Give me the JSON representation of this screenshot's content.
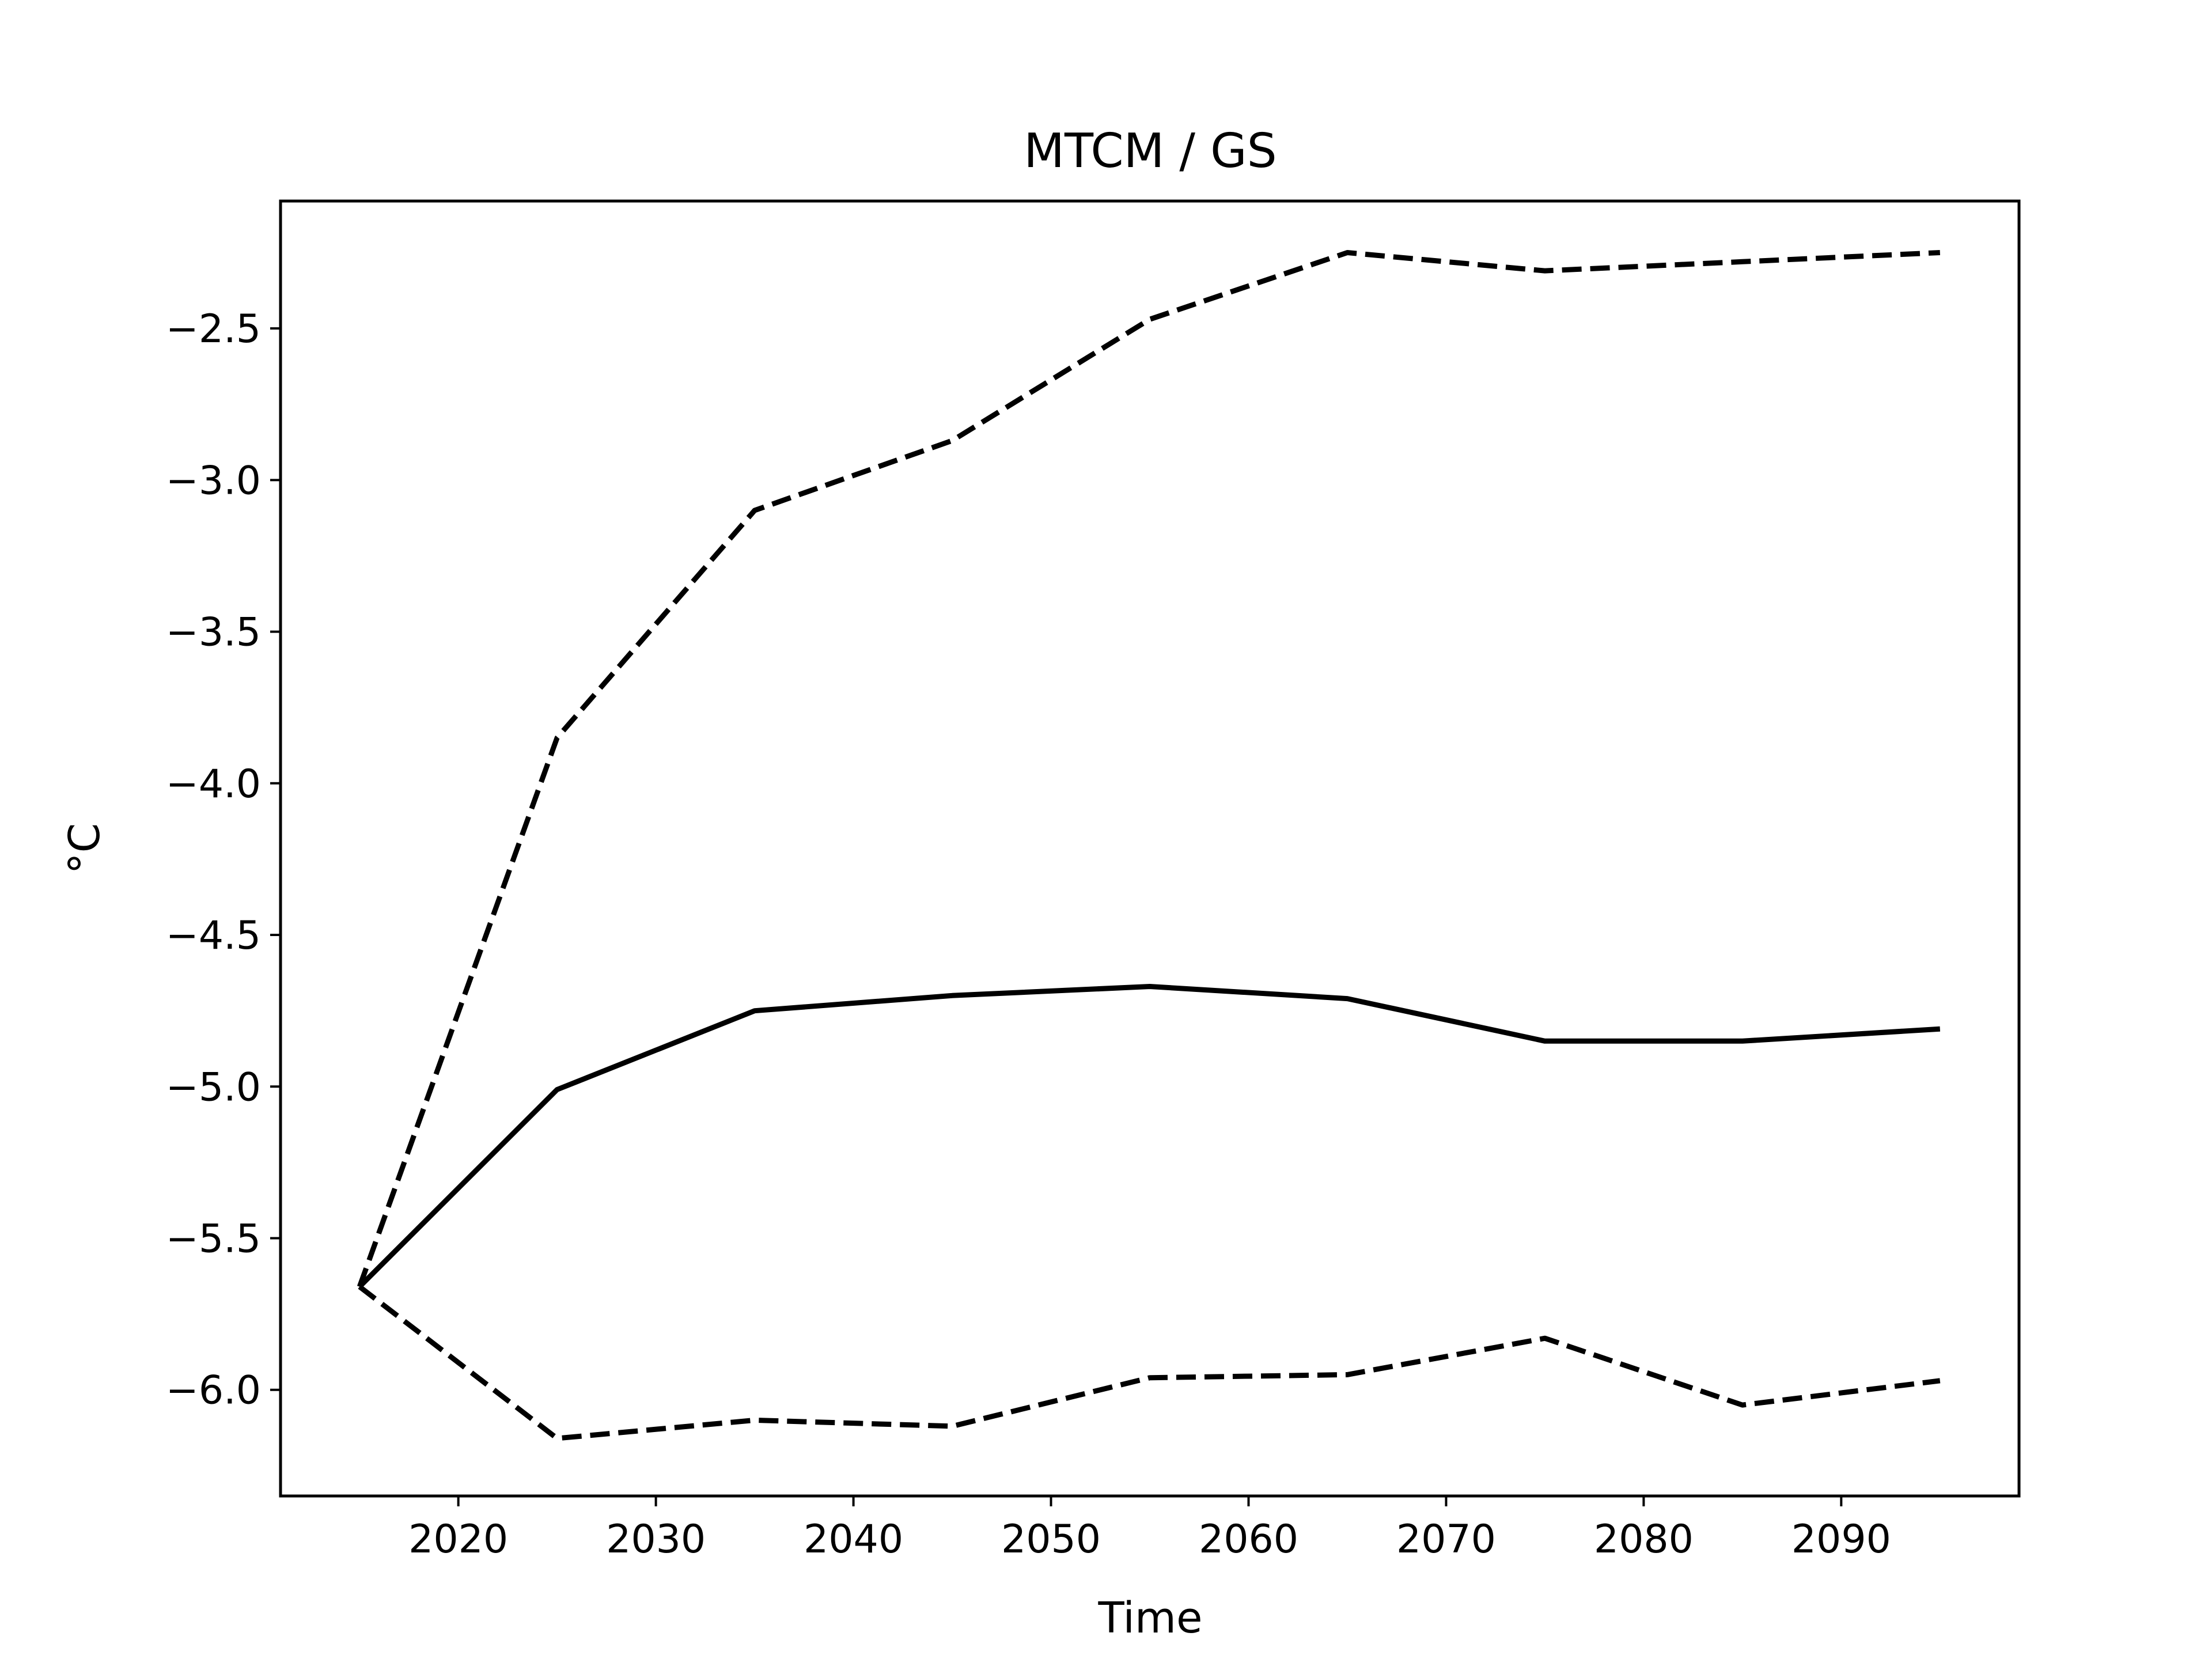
{
  "chart_data": {
    "type": "line",
    "title": "MTCM / GS",
    "xlabel": "Time",
    "ylabel": "°C",
    "x": [
      2015,
      2025,
      2035,
      2045,
      2055,
      2065,
      2075,
      2085,
      2095
    ],
    "series": [
      {
        "values": [
          -5.66,
          -5.01,
          -4.75,
          -4.7,
          -4.67,
          -4.71,
          -4.85,
          -4.85,
          -4.81
        ],
        "style": "solid",
        "color": "#000000"
      },
      {
        "values": [
          -5.66,
          -3.85,
          -3.1,
          -2.87,
          -2.47,
          -2.25,
          -2.31,
          -2.28,
          -2.25
        ],
        "style": "dashed",
        "color": "#000000"
      },
      {
        "values": [
          -5.66,
          -6.16,
          -6.1,
          -6.12,
          -5.96,
          -5.95,
          -5.83,
          -6.05,
          -5.97
        ],
        "style": "dashed",
        "color": "#000000"
      }
    ],
    "xticks": [
      2020,
      2030,
      2040,
      2050,
      2060,
      2070,
      2080,
      2090
    ],
    "yticks": [
      -6.0,
      -5.5,
      -5.0,
      -4.5,
      -4.0,
      -3.5,
      -3.0,
      -2.5
    ],
    "ytick_labels": [
      "−6.0",
      "−5.5",
      "−5.0",
      "−4.5",
      "−4.0",
      "−3.5",
      "−3.0",
      "−2.5"
    ],
    "xlim": [
      2011,
      2099
    ],
    "ylim": [
      -6.35,
      -2.08
    ],
    "grid": false,
    "legend": "none"
  }
}
